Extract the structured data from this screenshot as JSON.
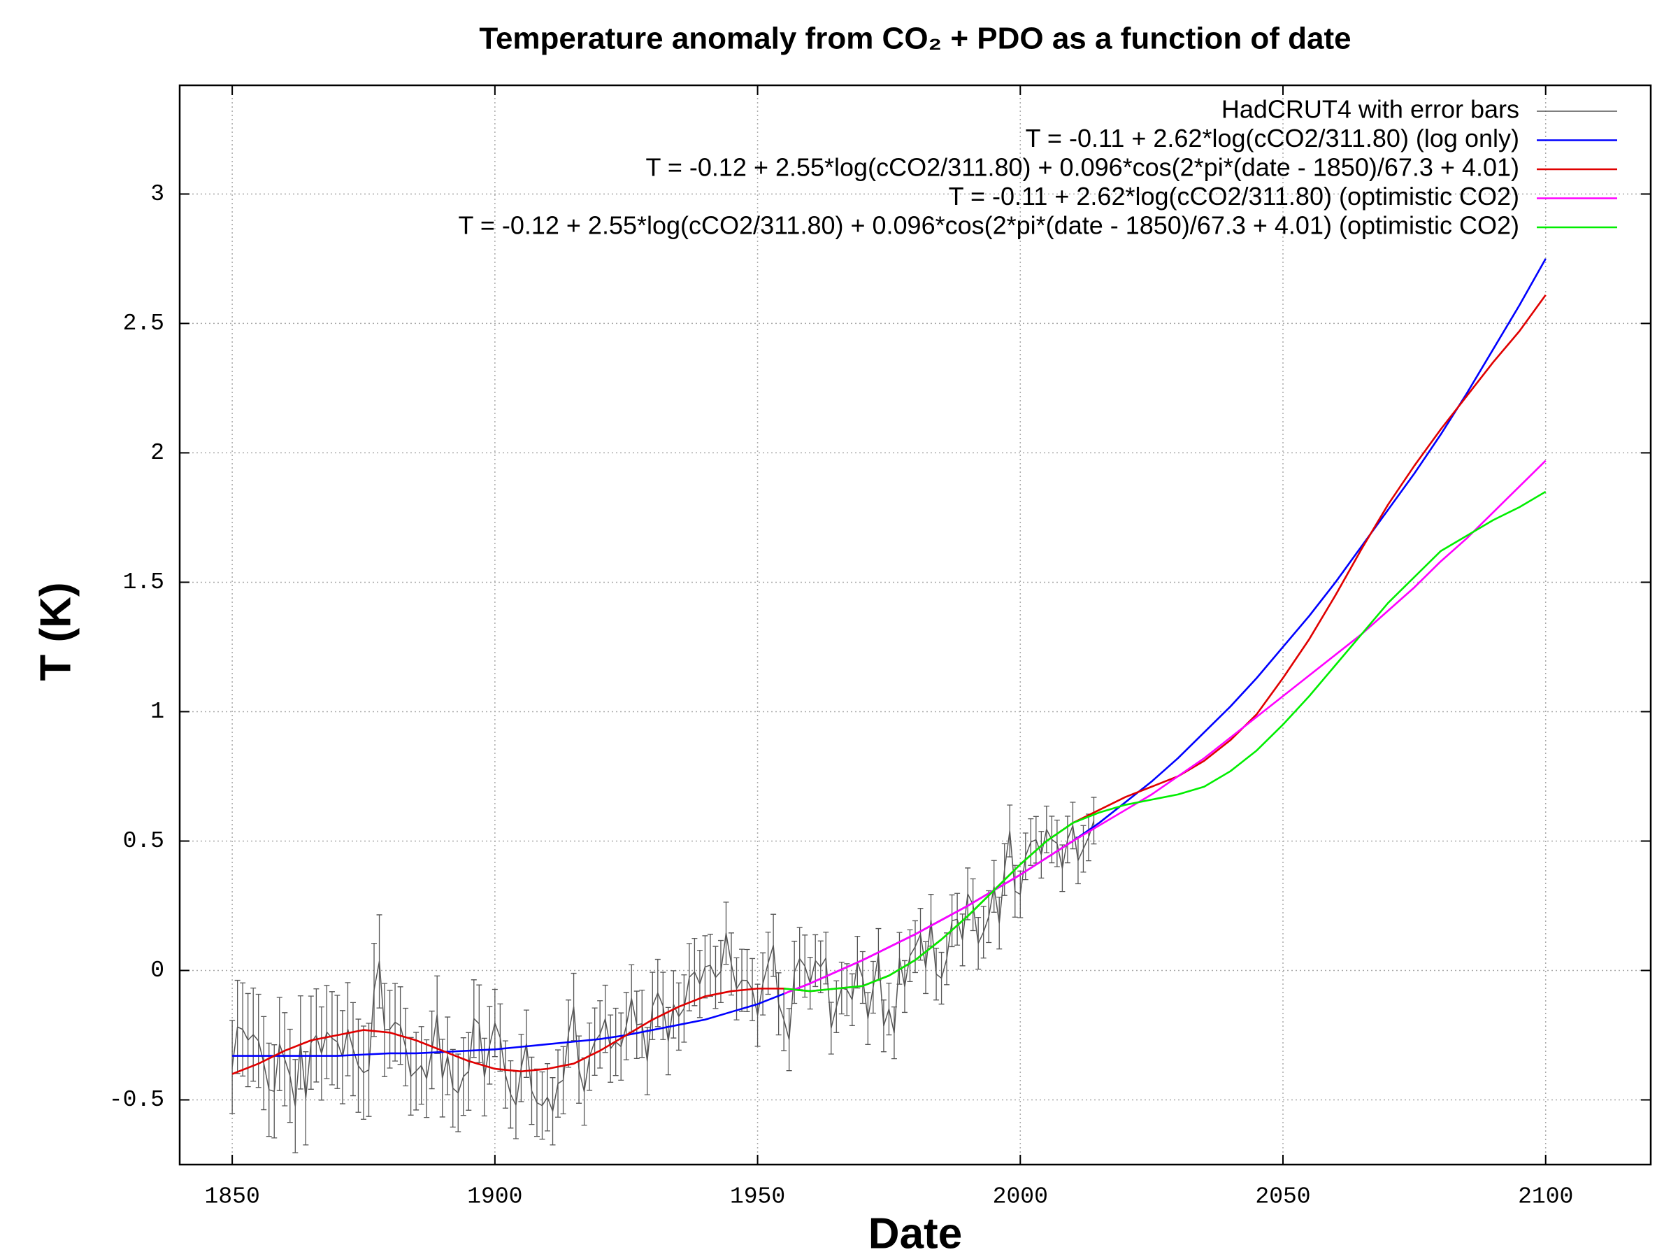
{
  "chart_data": {
    "type": "line",
    "title": "Temperature anomaly from CO₂ + PDO as a function of date",
    "x_label": "Date",
    "y_label": "T (K)",
    "xlim": [
      1840,
      2120
    ],
    "ylim": [
      -0.75,
      3.42
    ],
    "xticks": [
      1850,
      1900,
      1950,
      2000,
      2050,
      2100
    ],
    "yticks": [
      -0.5,
      0,
      0.5,
      1,
      1.5,
      2,
      2.5,
      3
    ],
    "grid": true,
    "legend": "top right",
    "x": [
      1850,
      1855,
      1860,
      1865,
      1870,
      1875,
      1880,
      1885,
      1890,
      1895,
      1900,
      1905,
      1910,
      1915,
      1920,
      1925,
      1930,
      1935,
      1940,
      1945,
      1950,
      1955,
      1960,
      1965,
      1970,
      1975,
      1980,
      1985,
      1990,
      1995,
      2000,
      2005,
      2010,
      2015,
      2020,
      2025,
      2030,
      2035,
      2040,
      2045,
      2050,
      2055,
      2060,
      2065,
      2070,
      2075,
      2080,
      2085,
      2090,
      2095,
      2100
    ],
    "series": [
      {
        "name": "HadCRUT4 with error bars",
        "color": "#555555",
        "x": [
          1850,
          1851,
          1852,
          1853,
          1854,
          1855,
          1856,
          1857,
          1858,
          1859,
          1860,
          1861,
          1862,
          1863,
          1864,
          1865,
          1866,
          1867,
          1868,
          1869,
          1870,
          1871,
          1872,
          1873,
          1874,
          1875,
          1876,
          1877,
          1878,
          1879,
          1880,
          1881,
          1882,
          1883,
          1884,
          1885,
          1886,
          1887,
          1888,
          1889,
          1890,
          1891,
          1892,
          1893,
          1894,
          1895,
          1896,
          1897,
          1898,
          1899,
          1900,
          1901,
          1902,
          1903,
          1904,
          1905,
          1906,
          1907,
          1908,
          1909,
          1910,
          1911,
          1912,
          1913,
          1914,
          1915,
          1916,
          1917,
          1918,
          1919,
          1920,
          1921,
          1922,
          1923,
          1924,
          1925,
          1926,
          1927,
          1928,
          1929,
          1930,
          1931,
          1932,
          1933,
          1934,
          1935,
          1936,
          1937,
          1938,
          1939,
          1940,
          1941,
          1942,
          1943,
          1944,
          1945,
          1946,
          1947,
          1948,
          1949,
          1950,
          1951,
          1952,
          1953,
          1954,
          1955,
          1956,
          1957,
          1958,
          1959,
          1960,
          1961,
          1962,
          1963,
          1964,
          1965,
          1966,
          1967,
          1968,
          1969,
          1970,
          1971,
          1972,
          1973,
          1974,
          1975,
          1976,
          1977,
          1978,
          1979,
          1980,
          1981,
          1982,
          1983,
          1984,
          1985,
          1986,
          1987,
          1988,
          1989,
          1990,
          1991,
          1992,
          1993,
          1994,
          1995,
          1996,
          1997,
          1998,
          1999,
          2000,
          2001,
          2002,
          2003,
          2004,
          2005,
          2006,
          2007,
          2008,
          2009,
          2010,
          2011,
          2012,
          2013,
          2014
        ],
        "values": [
          -0.373,
          -0.218,
          -0.228,
          -0.269,
          -0.248,
          -0.272,
          -0.358,
          -0.461,
          -0.467,
          -0.284,
          -0.343,
          -0.407,
          -0.524,
          -0.278,
          -0.494,
          -0.279,
          -0.251,
          -0.321,
          -0.238,
          -0.262,
          -0.276,
          -0.335,
          -0.227,
          -0.304,
          -0.368,
          -0.395,
          -0.384,
          -0.075,
          0.035,
          -0.23,
          -0.227,
          -0.2,
          -0.213,
          -0.296,
          -0.409,
          -0.389,
          -0.367,
          -0.418,
          -0.307,
          -0.171,
          -0.416,
          -0.33,
          -0.455,
          -0.473,
          -0.41,
          -0.39,
          -0.186,
          -0.206,
          -0.412,
          -0.289,
          -0.203,
          -0.259,
          -0.402,
          -0.479,
          -0.52,
          -0.377,
          -0.283,
          -0.465,
          -0.511,
          -0.522,
          -0.49,
          -0.544,
          -0.437,
          -0.424,
          -0.244,
          -0.141,
          -0.383,
          -0.468,
          -0.333,
          -0.275,
          -0.247,
          -0.187,
          -0.302,
          -0.276,
          -0.294,
          -0.215,
          -0.108,
          -0.21,
          -0.206,
          -0.35,
          -0.137,
          -0.087,
          -0.137,
          -0.273,
          -0.131,
          -0.178,
          -0.147,
          -0.026,
          -0.006,
          -0.052,
          0.014,
          0.02,
          -0.027,
          -0.004,
          0.144,
          0.025,
          -0.071,
          -0.038,
          -0.039,
          -0.074,
          -0.173,
          -0.052,
          0.028,
          0.097,
          -0.129,
          -0.19,
          -0.267,
          -0.007,
          0.046,
          0.017,
          -0.049,
          0.038,
          0.014,
          0.048,
          -0.223,
          -0.14,
          -0.068,
          -0.074,
          -0.113,
          0.032,
          -0.027,
          -0.186,
          -0.065,
          0.062,
          -0.214,
          -0.149,
          -0.241,
          0.047,
          -0.062,
          0.057,
          0.092,
          0.14,
          0.011,
          0.194,
          -0.014,
          -0.03,
          0.045,
          0.192,
          0.198,
          0.118,
          0.296,
          0.254,
          0.105,
          0.148,
          0.208,
          0.325,
          0.183,
          0.39,
          0.539,
          0.306,
          0.294,
          0.441,
          0.496,
          0.505,
          0.447,
          0.545,
          0.506,
          0.491,
          0.395,
          0.506,
          0.56,
          0.425,
          0.47,
          0.514,
          0.579
        ],
        "errors": [
          0.18,
          0.18,
          0.18,
          0.18,
          0.18,
          0.18,
          0.18,
          0.18,
          0.18,
          0.18,
          0.18,
          0.18,
          0.18,
          0.18,
          0.18,
          0.18,
          0.18,
          0.18,
          0.18,
          0.18,
          0.18,
          0.18,
          0.18,
          0.18,
          0.18,
          0.18,
          0.18,
          0.18,
          0.18,
          0.18,
          0.15,
          0.15,
          0.15,
          0.15,
          0.15,
          0.15,
          0.15,
          0.15,
          0.15,
          0.15,
          0.15,
          0.15,
          0.15,
          0.15,
          0.15,
          0.15,
          0.15,
          0.15,
          0.15,
          0.15,
          0.13,
          0.13,
          0.13,
          0.13,
          0.13,
          0.13,
          0.13,
          0.13,
          0.13,
          0.13,
          0.13,
          0.13,
          0.13,
          0.13,
          0.13,
          0.13,
          0.13,
          0.13,
          0.13,
          0.13,
          0.13,
          0.13,
          0.13,
          0.13,
          0.13,
          0.13,
          0.13,
          0.13,
          0.13,
          0.13,
          0.13,
          0.13,
          0.13,
          0.13,
          0.13,
          0.13,
          0.13,
          0.13,
          0.13,
          0.13,
          0.12,
          0.12,
          0.12,
          0.12,
          0.12,
          0.12,
          0.12,
          0.12,
          0.12,
          0.12,
          0.12,
          0.12,
          0.12,
          0.12,
          0.12,
          0.12,
          0.12,
          0.12,
          0.12,
          0.12,
          0.1,
          0.1,
          0.1,
          0.1,
          0.1,
          0.1,
          0.1,
          0.1,
          0.1,
          0.1,
          0.1,
          0.1,
          0.1,
          0.1,
          0.1,
          0.1,
          0.1,
          0.1,
          0.1,
          0.1,
          0.1,
          0.1,
          0.1,
          0.1,
          0.1,
          0.1,
          0.1,
          0.1,
          0.1,
          0.1,
          0.1,
          0.1,
          0.1,
          0.1,
          0.1,
          0.1,
          0.1,
          0.1,
          0.1,
          0.1,
          0.09,
          0.09,
          0.09,
          0.09,
          0.09,
          0.09,
          0.09,
          0.09,
          0.09,
          0.09,
          0.09,
          0.09,
          0.09,
          0.09,
          0.09
        ]
      },
      {
        "name": "T = -0.11 + 2.62*log(cCO2/311.80) (log only)",
        "color": "#0000ff",
        "values": [
          -0.33,
          -0.33,
          -0.33,
          -0.33,
          -0.33,
          -0.325,
          -0.32,
          -0.32,
          -0.315,
          -0.31,
          -0.305,
          -0.295,
          -0.285,
          -0.275,
          -0.265,
          -0.25,
          -0.23,
          -0.21,
          -0.19,
          -0.16,
          -0.13,
          -0.09,
          -0.05,
          -0.005,
          0.04,
          0.09,
          0.14,
          0.195,
          0.25,
          0.31,
          0.37,
          0.435,
          0.5,
          0.57,
          0.65,
          0.73,
          0.82,
          0.92,
          1.02,
          1.13,
          1.25,
          1.37,
          1.5,
          1.64,
          1.78,
          1.92,
          2.07,
          2.23,
          2.4,
          2.57,
          2.75
        ]
      },
      {
        "name": "T = -0.12 + 2.55*log(cCO2/311.80) + 0.096*cos(2*pi*(date - 1850)/67.3 + 4.01)",
        "color": "#e00000",
        "values": [
          -0.4,
          -0.36,
          -0.31,
          -0.27,
          -0.25,
          -0.23,
          -0.24,
          -0.27,
          -0.31,
          -0.35,
          -0.38,
          -0.39,
          -0.38,
          -0.36,
          -0.31,
          -0.25,
          -0.19,
          -0.14,
          -0.1,
          -0.08,
          -0.07,
          -0.07,
          -0.08,
          -0.07,
          -0.06,
          -0.02,
          0.04,
          0.12,
          0.21,
          0.31,
          0.41,
          0.5,
          0.57,
          0.62,
          0.67,
          0.71,
          0.75,
          0.81,
          0.89,
          0.99,
          1.13,
          1.28,
          1.45,
          1.63,
          1.8,
          1.95,
          2.09,
          2.22,
          2.35,
          2.47,
          2.61
        ]
      },
      {
        "name": "T = -0.11 + 2.62*log(cCO2/311.80) (optimistic CO2)",
        "color": "#ff00ff",
        "values": [
          null,
          null,
          null,
          null,
          null,
          null,
          null,
          null,
          null,
          null,
          null,
          null,
          null,
          null,
          null,
          null,
          null,
          null,
          null,
          null,
          null,
          -0.09,
          -0.05,
          -0.005,
          0.04,
          0.09,
          0.14,
          0.195,
          0.25,
          0.31,
          0.37,
          0.435,
          0.5,
          0.56,
          0.62,
          0.68,
          0.75,
          0.82,
          0.9,
          0.98,
          1.06,
          1.14,
          1.22,
          1.3,
          1.39,
          1.48,
          1.58,
          1.67,
          1.77,
          1.87,
          1.97
        ]
      },
      {
        "name": "T = -0.12 + 2.55*log(cCO2/311.80) + 0.096*cos(2*pi*(date - 1850)/67.3 + 4.01) (optimistic CO2)",
        "color": "#00ee00",
        "values": [
          null,
          null,
          null,
          null,
          null,
          null,
          null,
          null,
          null,
          null,
          null,
          null,
          null,
          null,
          null,
          null,
          null,
          null,
          null,
          null,
          null,
          -0.07,
          -0.08,
          -0.07,
          -0.06,
          -0.02,
          0.04,
          0.12,
          0.21,
          0.31,
          0.41,
          0.5,
          0.57,
          0.61,
          0.64,
          0.66,
          0.68,
          0.71,
          0.77,
          0.85,
          0.95,
          1.06,
          1.18,
          1.3,
          1.42,
          1.52,
          1.62,
          1.68,
          1.74,
          1.79,
          1.85
        ]
      }
    ]
  }
}
